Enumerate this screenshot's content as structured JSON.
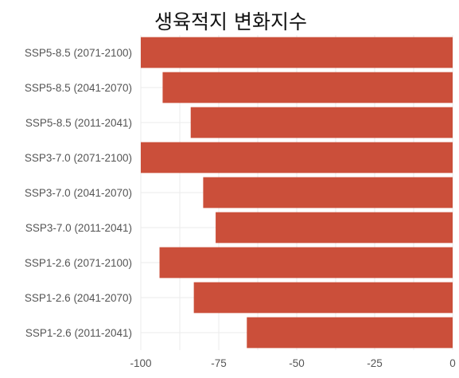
{
  "chart_data": {
    "type": "bar",
    "orientation": "horizontal",
    "title": "생육적지 변화지수",
    "xlabel": "",
    "ylabel": "",
    "categories": [
      "SSP5-8.5 (2071-2100)",
      "SSP5-8.5 (2041-2070)",
      "SSP5-8.5 (2011-2041)",
      "SSP3-7.0 (2071-2100)",
      "SSP3-7.0 (2041-2070)",
      "SSP3-7.0 (2011-2041)",
      "SSP1-2.6 (2071-2100)",
      "SSP1-2.6 (2041-2070)",
      "SSP1-2.6 (2011-2041)"
    ],
    "values": [
      -100,
      -93,
      -84,
      -100,
      -80,
      -76,
      -94,
      -83,
      -66
    ],
    "xlim": [
      -100,
      0
    ],
    "xticks": [
      -100,
      -75,
      -50,
      -25,
      0
    ],
    "xtick_labels": [
      "-100",
      "-75",
      "-50",
      "-25",
      "0"
    ],
    "grid": true,
    "bar_color": "#cb4f3a",
    "grid_color": "#ebebeb"
  }
}
